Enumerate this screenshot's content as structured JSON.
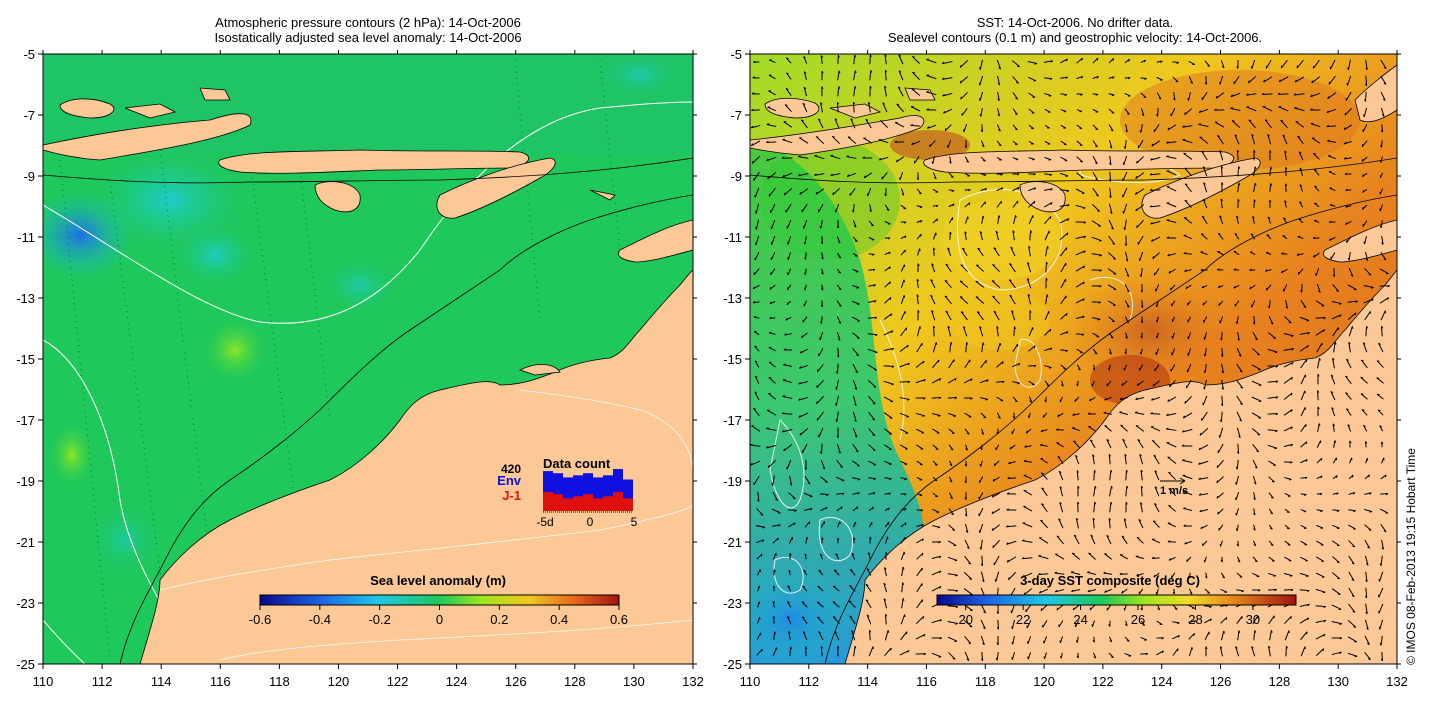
{
  "left_panel": {
    "title_line1": "Atmospheric pressure contours (2 hPa): 14-Oct-2006",
    "title_line2": "Isostatically adjusted sea level anomaly: 14-Oct-2006",
    "x_ticks": [
      "110",
      "112",
      "114",
      "116",
      "118",
      "120",
      "122",
      "124",
      "126",
      "128",
      "130",
      "132"
    ],
    "y_ticks": [
      "-5",
      "-7",
      "-9",
      "-11",
      "-13",
      "-15",
      "-17",
      "-19",
      "-21",
      "-23",
      "-25"
    ],
    "colorbar": {
      "label": "Sea level anomaly (m)",
      "ticks": [
        "-0.6",
        "-0.4",
        "-0.2",
        "0",
        "0.2",
        "0.4",
        "0.6"
      ],
      "range": [
        -0.6,
        0.6
      ]
    },
    "data_count": {
      "title": "Data count",
      "total": "420",
      "series_env": "Env",
      "series_j1": "J-1",
      "color_env": "#1010e0",
      "color_j1": "#e01010",
      "axis_labels": [
        "-5d",
        "0",
        "5"
      ],
      "env_values": [
        0.95,
        0.9,
        0.8,
        0.85,
        0.9,
        0.8,
        0.85,
        1.0,
        0.75
      ],
      "j1_values": [
        0.45,
        0.4,
        0.3,
        0.35,
        0.4,
        0.3,
        0.35,
        0.45,
        0.3
      ]
    }
  },
  "right_panel": {
    "title_line1": "SST: 14-Oct-2006. No drifter data.",
    "title_line2": "Sealevel contours (0.1 m) and geostrophic velocity: 14-Oct-2006.",
    "x_ticks": [
      "110",
      "112",
      "114",
      "116",
      "118",
      "120",
      "122",
      "124",
      "126",
      "128",
      "130",
      "132"
    ],
    "y_ticks": [
      "-5",
      "-7",
      "-9",
      "-11",
      "-13",
      "-15",
      "-17",
      "-19",
      "-21",
      "-23",
      "-25"
    ],
    "velocity_scale_label": "1 m/s",
    "colorbar": {
      "label": "3-day SST composite (deg C)",
      "ticks": [
        "20",
        "22",
        "24",
        "26",
        "28",
        "30"
      ],
      "range": [
        19,
        31.5
      ]
    }
  },
  "credit": "© IMOS 08-Feb-2013 19:15 Hobart Time",
  "colors": {
    "land": "#fcc896",
    "sla_ocean": "#1ec85a",
    "sst_warm": "#e8821e",
    "sst_cool": "#28b4e0"
  }
}
